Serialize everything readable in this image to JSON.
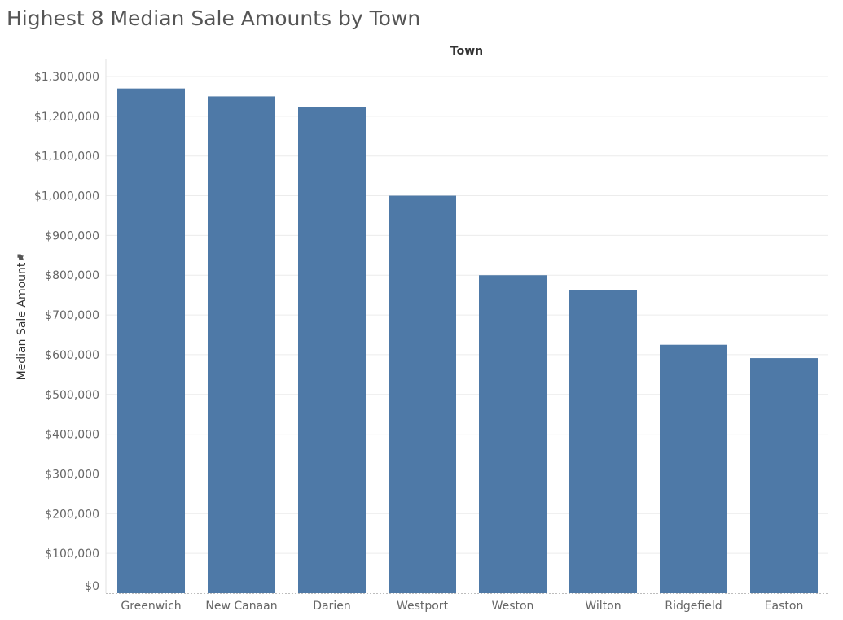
{
  "chart_data": {
    "type": "bar",
    "title": "Highest 8 Median Sale Amounts by Town",
    "column_header": "Town",
    "xlabel": "",
    "ylabel": "Median Sale Amount",
    "ylim": [
      0,
      1300000
    ],
    "y_ticks": [
      {
        "value": 0,
        "label": "$0"
      },
      {
        "value": 100000,
        "label": "$100,000"
      },
      {
        "value": 200000,
        "label": "$200,000"
      },
      {
        "value": 300000,
        "label": "$300,000"
      },
      {
        "value": 400000,
        "label": "$400,000"
      },
      {
        "value": 500000,
        "label": "$500,000"
      },
      {
        "value": 600000,
        "label": "$600,000"
      },
      {
        "value": 700000,
        "label": "$700,000"
      },
      {
        "value": 800000,
        "label": "$800,000"
      },
      {
        "value": 900000,
        "label": "$900,000"
      },
      {
        "value": 1000000,
        "label": "$1,000,000"
      },
      {
        "value": 1100000,
        "label": "$1,100,000"
      },
      {
        "value": 1200000,
        "label": "$1,200,000"
      },
      {
        "value": 1300000,
        "label": "$1,300,000"
      }
    ],
    "categories": [
      "Greenwich",
      "New Canaan",
      "Darien",
      "Westport",
      "Weston",
      "Wilton",
      "Ridgefield",
      "Easton"
    ],
    "values": [
      1270000,
      1250000,
      1222500,
      1000000,
      800000,
      762000,
      625000,
      591500
    ],
    "bar_color": "#4e79a7",
    "grid": true,
    "grid_color": "#ececec",
    "y_axis_pin_icon": "pin-icon"
  }
}
